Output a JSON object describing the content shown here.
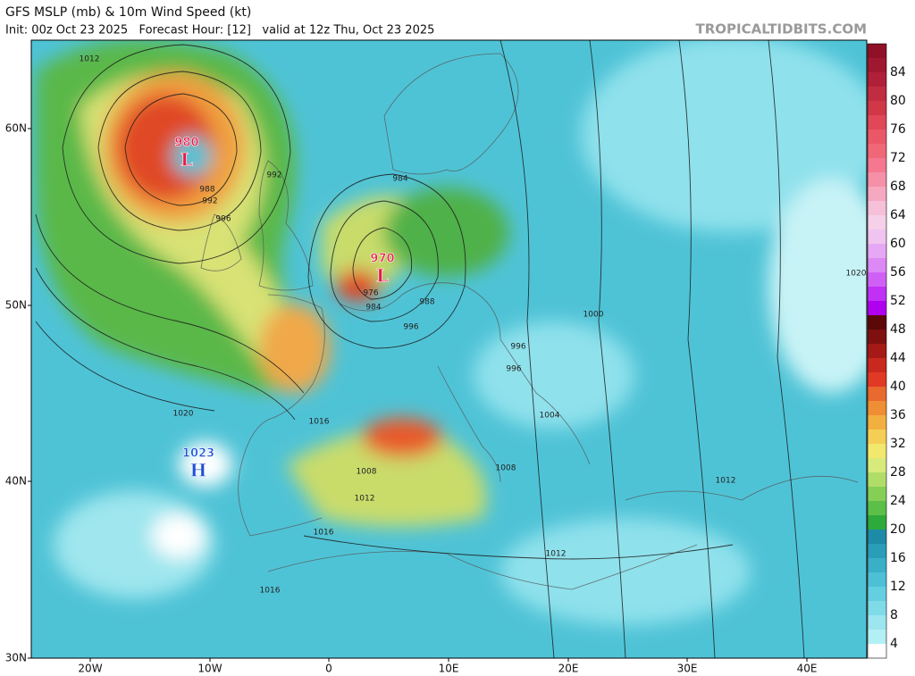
{
  "header": {
    "title": "GFS MSLP (mb) & 10m Wind Speed (kt)",
    "subtitle": "Init: 00z Oct 23 2025   Forecast Hour: [12]   valid at 12z Thu, Oct 23 2025",
    "site": "TROPICALTIDBITS.COM"
  },
  "map": {
    "lat_labels": [
      "60N",
      "50N",
      "40N",
      "30N"
    ],
    "lon_labels": [
      "20W",
      "10W",
      "0",
      "10E",
      "20E",
      "30E",
      "40E"
    ],
    "centers": [
      {
        "pressure": "980",
        "letter": "L"
      },
      {
        "pressure": "970",
        "letter": "L"
      },
      {
        "pressure": "1023",
        "letter": "H"
      }
    ],
    "isobar_labels": [
      "1012",
      "988",
      "992",
      "996",
      "992",
      "984",
      "976",
      "984",
      "988",
      "996",
      "1000",
      "1020",
      "996",
      "996",
      "1020",
      "1016",
      "1008",
      "1012",
      "1016",
      "1012",
      "1016",
      "1004",
      "1008",
      "1012"
    ]
  },
  "colorbar": {
    "labels": [
      "4",
      "8",
      "12",
      "16",
      "20",
      "24",
      "28",
      "32",
      "36",
      "40",
      "44",
      "48",
      "52",
      "56",
      "60",
      "64",
      "68",
      "72",
      "76",
      "80",
      "84"
    ],
    "colors": [
      "#ffffff",
      "#b3f0f5",
      "#9de6ef",
      "#7fdbe8",
      "#64cfe0",
      "#4ec0d6",
      "#3aafc8",
      "#2a9db8",
      "#1d8ba8",
      "#2eaa3c",
      "#5bbf48",
      "#86cf56",
      "#b0dd68",
      "#d8ea7c",
      "#f2e86e",
      "#f5cf55",
      "#f2b040",
      "#ee8e35",
      "#e86a2e",
      "#e03a25",
      "#c8281e",
      "#a51a16",
      "#7e1010",
      "#5a0808",
      "#b000f0",
      "#c030f5",
      "#d060f5",
      "#dc88f5",
      "#e6a8f5",
      "#f0c4f0",
      "#f5d0e8",
      "#f5c0d8",
      "#f5a8c0",
      "#f590a8",
      "#f57890",
      "#f06878",
      "#ea5868",
      "#e04858",
      "#d03848",
      "#c02c40",
      "#b02038",
      "#a01830",
      "#901028"
    ]
  }
}
